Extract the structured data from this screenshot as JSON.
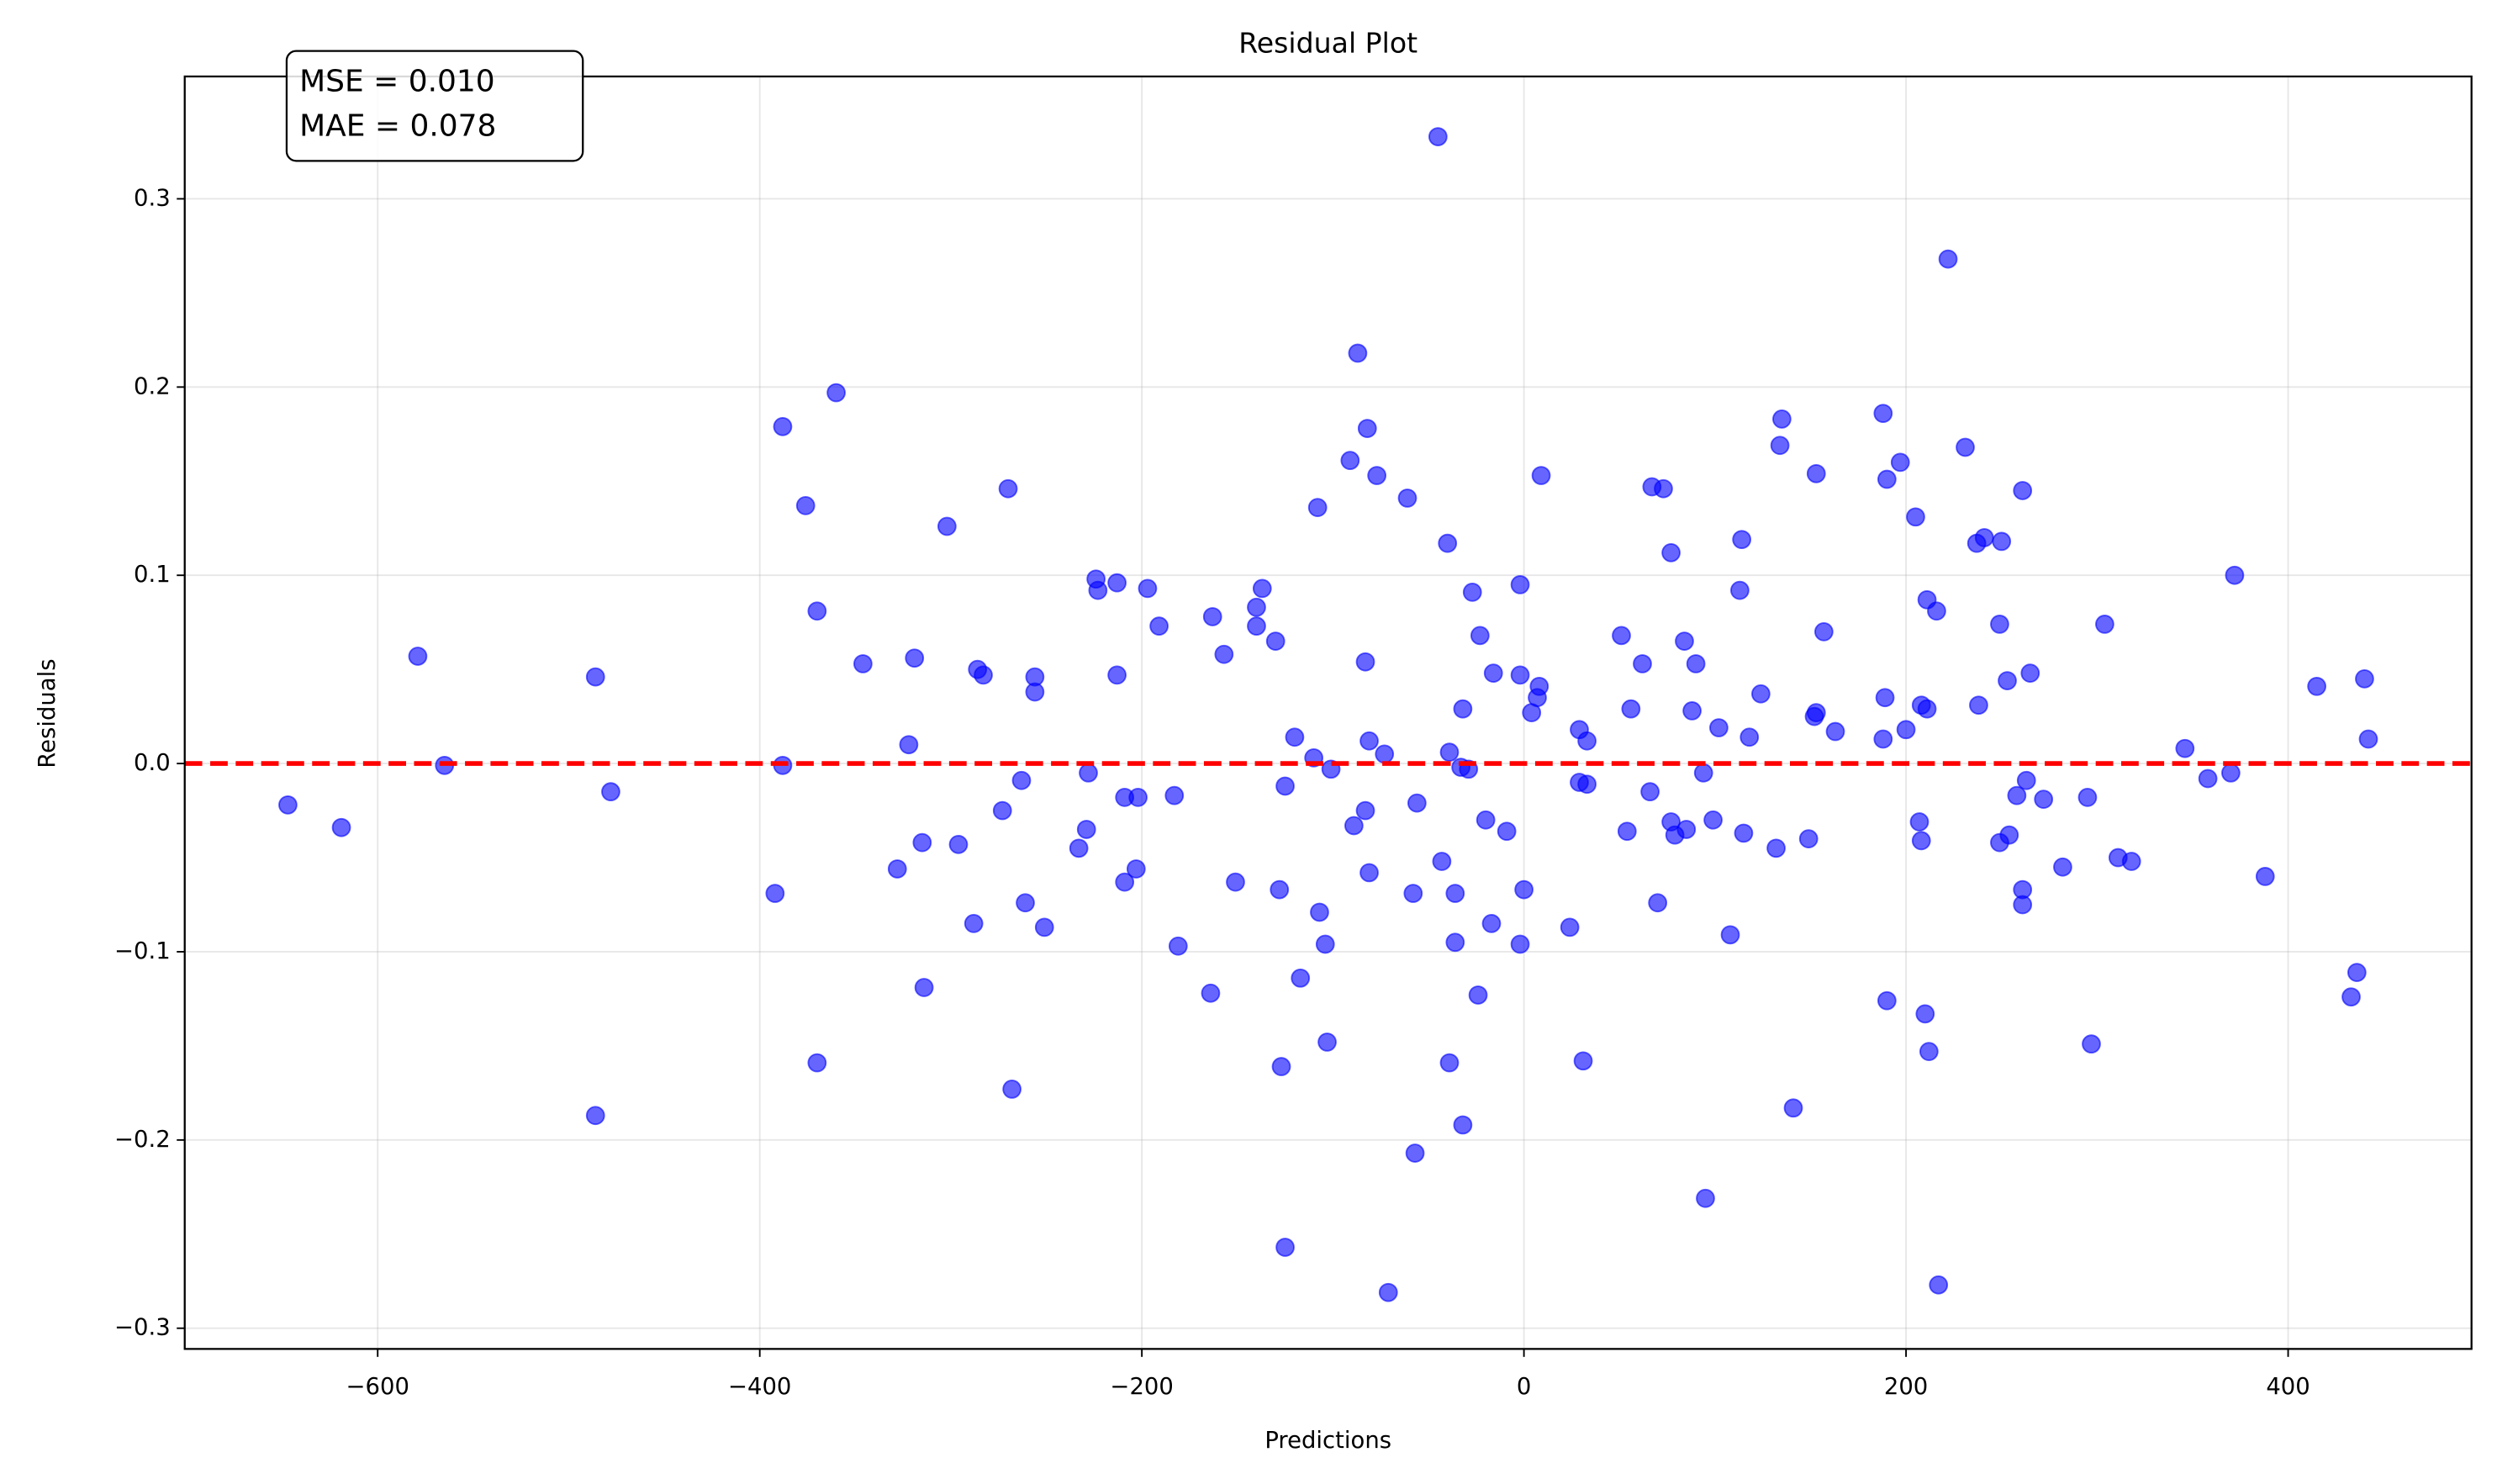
{
  "chart_data": {
    "type": "scatter",
    "title": "Residual Plot",
    "x_label": "Predictions",
    "y_label": "Residuals",
    "annotations": [
      "MSE = 0.010",
      "MAE = 0.078"
    ],
    "color": "#0000ff",
    "grid": true,
    "reference_line": {
      "y": 0,
      "color": "#ff0000"
    },
    "xlim": [
      -701,
      496
    ],
    "ylim": [
      -0.311,
      0.365
    ],
    "xticks": [
      {
        "value": -600,
        "label": "−600"
      },
      {
        "value": -400,
        "label": "−400"
      },
      {
        "value": -200,
        "label": "−200"
      },
      0,
      200,
      400
    ],
    "yticks": [
      {
        "value": -0.3,
        "label": "−0.3"
      },
      {
        "value": -0.2,
        "label": "−0.2"
      },
      {
        "value": -0.1,
        "label": "−0.1"
      },
      {
        "value": 0,
        "label": "0.0"
      },
      0.1,
      0.2,
      0.3
    ],
    "x": [
      -647,
      -619,
      -579,
      -565,
      -486,
      -486,
      -478,
      -392,
      -388,
      -388,
      -376,
      -370,
      -370,
      -360,
      -346,
      -328,
      -322,
      -319,
      -315,
      -314,
      -302,
      -296,
      -288,
      -286,
      -283,
      -273,
      -270,
      -268,
      -263,
      -261,
      -256,
      -256,
      -251,
      -233,
      -229,
      -228,
      -224,
      -223,
      -213,
      -213,
      -209,
      -209,
      -203,
      -202,
      -197,
      -191,
      -183,
      -181,
      -164,
      -163,
      -157,
      -151,
      -140,
      -140,
      -137,
      -130,
      -128,
      -127,
      -125,
      -125,
      -120,
      -117,
      -110,
      -108,
      -107,
      -104,
      -103,
      -101,
      -91,
      -89,
      -87,
      -83,
      -83,
      -82,
      -81,
      -81,
      -77,
      -73,
      -71,
      -61,
      -58,
      -57,
      -56,
      -45,
      -43,
      -40,
      -39,
      -39,
      -36,
      -36,
      -33,
      -32,
      -32,
      -29,
      -27,
      -24,
      -23,
      -20,
      -17,
      -16,
      -9,
      -2,
      -2,
      -2,
      0,
      4,
      7,
      8,
      9,
      24,
      29,
      29,
      31,
      33,
      33,
      51,
      54,
      56,
      62,
      66,
      67,
      70,
      73,
      77,
      77,
      79,
      84,
      85,
      88,
      90,
      94,
      95,
      99,
      102,
      108,
      113,
      114,
      115,
      118,
      124,
      132,
      134,
      135,
      141,
      149,
      152,
      153,
      153,
      157,
      163,
      188,
      188,
      189,
      190,
      190,
      197,
      200,
      205,
      207,
      208,
      208,
      210,
      211,
      211,
      212,
      216,
      217,
      222,
      231,
      237,
      238,
      241,
      249,
      249,
      250,
      253,
      254,
      258,
      261,
      261,
      261,
      263,
      265,
      272,
      282,
      295,
      297,
      304,
      311,
      318,
      346,
      358,
      370,
      372,
      388,
      415,
      433,
      436,
      440,
      442
    ],
    "values": [
      -0.022,
      -0.034,
      0.057,
      -0.001,
      0.046,
      -0.187,
      -0.015,
      -0.069,
      0.179,
      -0.001,
      0.137,
      0.081,
      -0.159,
      0.197,
      0.053,
      -0.056,
      0.01,
      0.056,
      -0.042,
      -0.119,
      0.126,
      -0.043,
      -0.085,
      0.05,
      0.047,
      -0.025,
      0.146,
      -0.173,
      -0.009,
      -0.074,
      0.046,
      0.038,
      -0.087,
      -0.045,
      -0.035,
      -0.005,
      0.098,
      0.092,
      0.047,
      0.096,
      -0.063,
      -0.018,
      -0.056,
      -0.018,
      0.093,
      0.073,
      -0.017,
      -0.097,
      -0.122,
      0.078,
      0.058,
      -0.063,
      0.083,
      0.073,
      0.093,
      0.065,
      -0.067,
      -0.161,
      -0.012,
      -0.257,
      0.014,
      -0.114,
      0.003,
      0.136,
      -0.079,
      -0.096,
      -0.148,
      -0.003,
      0.161,
      -0.033,
      0.218,
      -0.025,
      0.054,
      0.178,
      -0.058,
      0.012,
      0.153,
      0.005,
      -0.281,
      0.141,
      -0.069,
      -0.207,
      -0.021,
      0.333,
      -0.052,
      0.117,
      -0.159,
      0.006,
      -0.069,
      -0.095,
      -0.002,
      -0.192,
      0.029,
      -0.003,
      0.091,
      -0.123,
      0.068,
      -0.03,
      -0.085,
      0.048,
      -0.036,
      0.095,
      0.047,
      -0.096,
      -0.067,
      0.027,
      0.035,
      0.041,
      0.153,
      -0.087,
      0.018,
      -0.01,
      -0.158,
      0.012,
      -0.011,
      0.068,
      -0.036,
      0.029,
      0.053,
      -0.015,
      0.147,
      -0.074,
      0.146,
      0.112,
      -0.031,
      -0.038,
      0.065,
      -0.035,
      0.028,
      0.053,
      -0.005,
      -0.231,
      -0.03,
      0.019,
      -0.091,
      0.092,
      0.119,
      -0.037,
      0.014,
      0.037,
      -0.045,
      0.169,
      0.183,
      -0.183,
      -0.04,
      0.025,
      0.154,
      0.027,
      0.07,
      0.017,
      0.186,
      0.013,
      0.035,
      -0.126,
      0.151,
      0.16,
      0.018,
      0.131,
      -0.031,
      -0.041,
      0.031,
      -0.133,
      0.087,
      0.029,
      -0.153,
      0.081,
      -0.277,
      0.268,
      0.168,
      0.117,
      0.031,
      0.12,
      -0.042,
      0.074,
      0.118,
      0.044,
      -0.038,
      -0.017,
      0.145,
      -0.067,
      -0.075,
      -0.009,
      0.048,
      -0.019,
      -0.055,
      -0.018,
      -0.149,
      0.074,
      -0.05,
      -0.052,
      0.008,
      -0.008,
      -0.005,
      0.1,
      -0.06,
      0.041,
      -0.124,
      -0.111,
      0.045,
      0.013
    ]
  }
}
